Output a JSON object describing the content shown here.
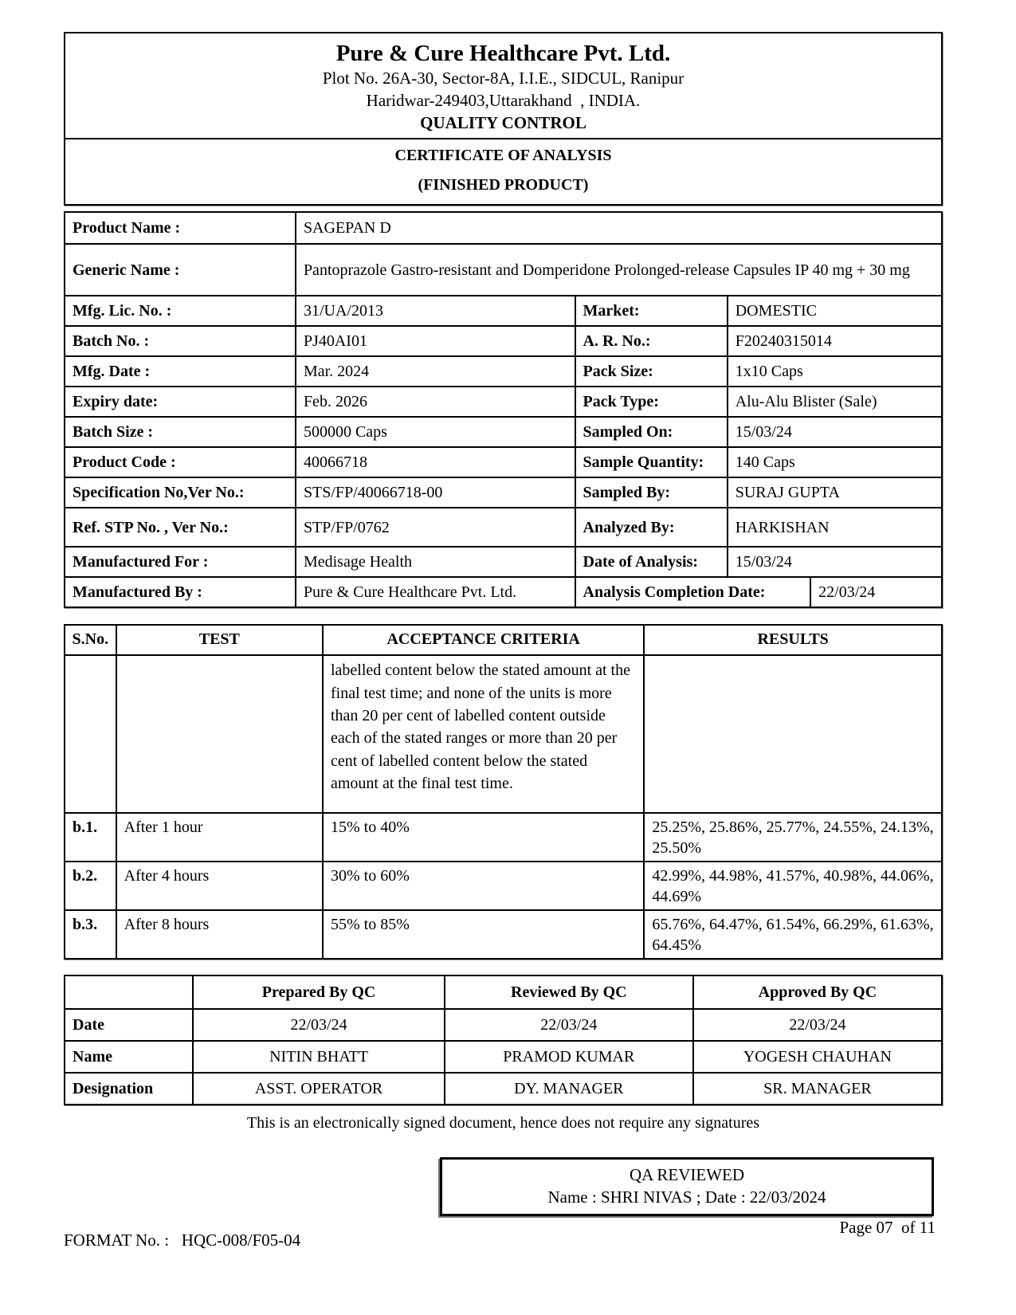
{
  "header": {
    "company": "Pure & Cure Healthcare Pvt. Ltd.",
    "address_line1": "Plot No. 26A-30, Sector-8A, I.I.E., SIDCUL, Ranipur",
    "address_line2": "Haridwar-249403,Uttarakhand  , INDIA.",
    "department": "QUALITY CONTROL",
    "doc_title": "CERTIFICATE OF ANALYSIS",
    "doc_subtitle": "(FINISHED PRODUCT)"
  },
  "product_info": {
    "rows": [
      {
        "label": "Product Name :",
        "value": "SAGEPAN D"
      },
      {
        "label": "Generic Name :",
        "value": "Pantoprazole Gastro-resistant and Domperidone Prolonged-release Capsules IP 40 mg + 30 mg"
      },
      {
        "label": "Mfg. Lic. No. :",
        "value": "31/UA/2013",
        "label2": "Market:",
        "value2": "DOMESTIC"
      },
      {
        "label": "Batch No. :",
        "value": "PJ40AI01",
        "label2": "A. R. No.:",
        "value2": "F20240315014"
      },
      {
        "label": "Mfg. Date :",
        "value": "Mar. 2024",
        "label2": "Pack Size:",
        "value2": "1x10 Caps"
      },
      {
        "label": "Expiry date:",
        "value": "Feb. 2026",
        "label2": "Pack Type:",
        "value2": "Alu-Alu Blister (Sale)"
      },
      {
        "label": "Batch Size :",
        "value": "500000 Caps",
        "label2": "Sampled On:",
        "value2": "15/03/24"
      },
      {
        "label": "Product Code :",
        "value": "40066718",
        "label2": "Sample Quantity:",
        "value2": "140 Caps"
      },
      {
        "label": "Specification No,Ver No.:",
        "value": "STS/FP/40066718-00",
        "label2": "Sampled By:",
        "value2": "SURAJ GUPTA"
      },
      {
        "label": "Ref. STP No. , Ver No.:",
        "value": "STP/FP/0762",
        "label2": "Analyzed By:",
        "value2": "HARKISHAN"
      },
      {
        "label": "Manufactured For :",
        "value": "Medisage Health",
        "label2": "Date of Analysis:",
        "value2": "15/03/24"
      },
      {
        "label": "Manufactured By :",
        "value": "Pure & Cure Healthcare Pvt. Ltd.",
        "label2": "Analysis Completion Date:",
        "value2": "22/03/24"
      }
    ]
  },
  "test_table": {
    "headers": [
      "S.No.",
      "TEST",
      "ACCEPTANCE CRITERIA",
      "RESULTS"
    ],
    "rows": [
      {
        "sno": "",
        "test": "",
        "criteria": "labelled content below the stated amount at the final test time; and none of the units is more than 20 per cent of labelled content outside each of the stated ranges or more than 20 per cent of labelled content below the stated amount at the final test time.",
        "results": ""
      },
      {
        "sno": "b.1.",
        "test": "After 1 hour",
        "criteria": "15% to 40%",
        "results": "25.25%, 25.86%, 25.77%, 24.55%, 24.13%, 25.50%"
      },
      {
        "sno": "b.2.",
        "test": "After 4 hours",
        "criteria": "30% to 60%",
        "results": "42.99%, 44.98%, 41.57%, 40.98%, 44.06%, 44.69%"
      },
      {
        "sno": "b.3.",
        "test": "After 8 hours",
        "criteria": "55% to 85%",
        "results": "65.76%, 64.47%, 61.54%, 66.29%, 61.63%, 64.45%"
      }
    ]
  },
  "signoff": {
    "headers": [
      "",
      "Prepared By QC",
      "Reviewed By QC",
      "Approved By QC"
    ],
    "rows": [
      {
        "label": "Date",
        "v1": "22/03/24",
        "v2": "22/03/24",
        "v3": "22/03/24"
      },
      {
        "label": "Name",
        "v1": "NITIN BHATT",
        "v2": "PRAMOD KUMAR",
        "v3": "YOGESH CHAUHAN"
      },
      {
        "label": "Designation",
        "v1": "ASST. OPERATOR",
        "v2": "DY. MANAGER",
        "v3": "SR. MANAGER"
      }
    ]
  },
  "footer": {
    "signature_note": "This is an electronically signed document, hence does not require any signatures",
    "qa_reviewed_title": "QA REVIEWED",
    "qa_reviewed_detail": "Name : SHRI NIVAS ; Date : 22/03/2024",
    "format_no": "FORMAT No. :   HQC-008/F05-04",
    "page_info": "Page 07  of 11"
  }
}
